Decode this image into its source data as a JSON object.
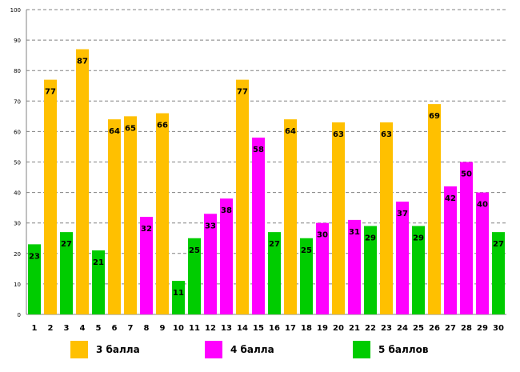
{
  "chart_data": {
    "type": "bar",
    "categories": [
      "1",
      "2",
      "3",
      "4",
      "5",
      "6",
      "7",
      "8",
      "9",
      "10",
      "11",
      "12",
      "13",
      "14",
      "15",
      "16",
      "17",
      "18",
      "19",
      "20",
      "21",
      "22",
      "23",
      "24",
      "25",
      "26",
      "27",
      "28",
      "29",
      "30"
    ],
    "values": [
      23,
      77,
      27,
      87,
      21,
      64,
      65,
      32,
      66,
      11,
      25,
      33,
      38,
      77,
      58,
      27,
      64,
      25,
      30,
      63,
      31,
      29,
      63,
      37,
      29,
      69,
      42,
      50,
      40,
      27
    ],
    "groups": [
      2,
      0,
      2,
      0,
      2,
      0,
      0,
      1,
      0,
      2,
      2,
      1,
      1,
      0,
      1,
      2,
      0,
      2,
      1,
      0,
      1,
      2,
      0,
      1,
      2,
      0,
      1,
      1,
      1,
      2
    ],
    "legend": [
      {
        "label": "3 балла",
        "color": "#FFC000"
      },
      {
        "label": "4 балла",
        "color": "#FF00FF"
      },
      {
        "label": "5 баллов",
        "color": "#00CC00"
      }
    ],
    "ylim": [
      0,
      100
    ],
    "yticks": [
      0,
      10,
      20,
      30,
      40,
      50,
      60,
      70,
      80,
      90,
      100
    ],
    "grid": true,
    "title": "",
    "xlabel": "",
    "ylabel": ""
  }
}
